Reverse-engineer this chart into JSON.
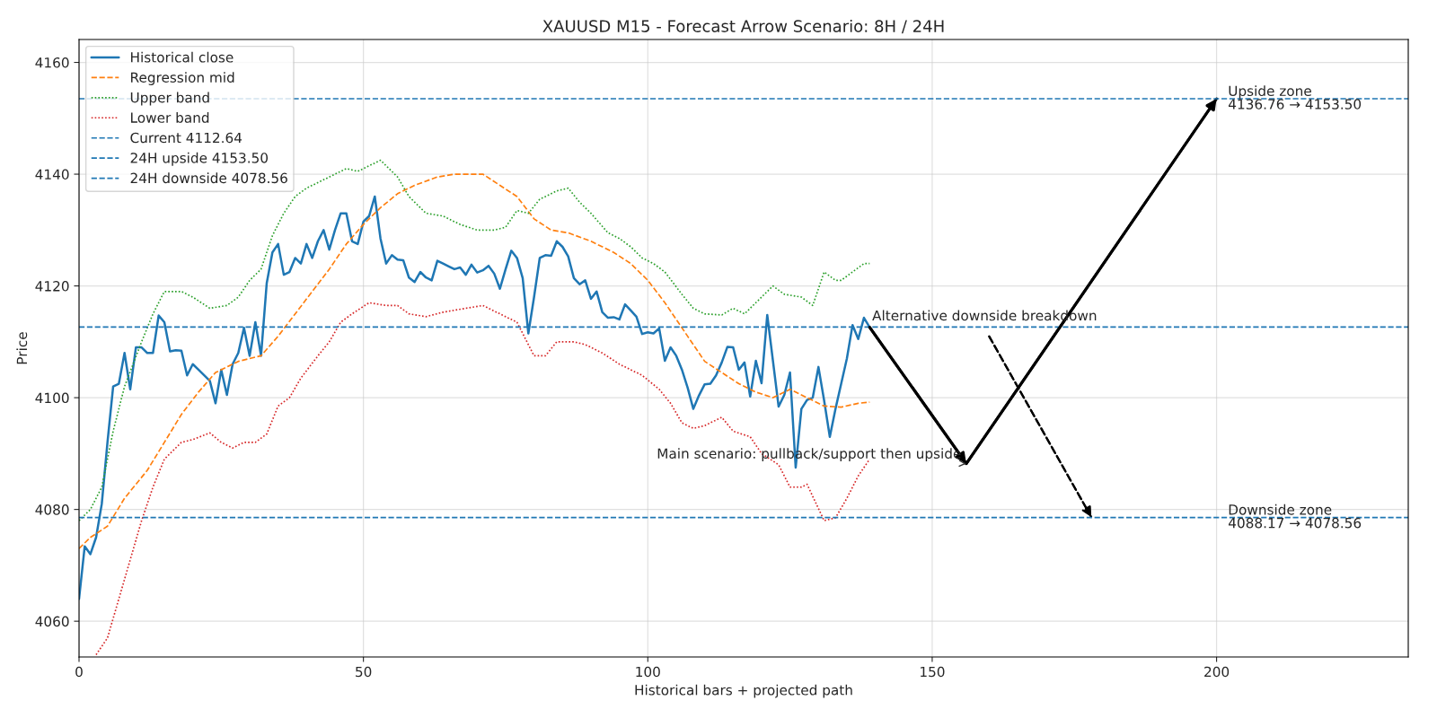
{
  "chart_data": {
    "type": "line",
    "title": "XAUUSD M15 - Forecast Arrow Scenario: 8H / 24H",
    "xlabel": "Historical bars + projected path",
    "ylabel": "Price",
    "xlim": [
      0,
      233.7
    ],
    "ylim": [
      4053.6,
      4164.1
    ],
    "xticks": [
      0,
      50,
      100,
      150,
      200
    ],
    "yticks": [
      4060,
      4080,
      4100,
      4120,
      4140,
      4160
    ],
    "grid": true,
    "legend": "top left",
    "series": [
      {
        "name": "Historical close",
        "color": "#1f77b4",
        "line_style": "solid",
        "x": [
          0,
          1,
          2,
          3,
          4,
          5,
          6,
          7,
          8,
          9,
          10,
          11,
          12,
          13,
          14,
          15,
          16,
          17,
          18,
          19,
          20,
          21,
          22,
          23,
          24,
          25,
          26,
          27,
          28,
          29,
          30,
          31,
          32,
          33,
          34,
          35,
          36,
          37,
          38,
          39,
          40,
          41,
          42,
          43,
          44,
          45,
          46,
          47,
          48,
          49,
          50,
          51,
          52,
          53,
          54,
          55,
          56,
          57,
          58,
          59,
          60,
          61,
          62,
          63,
          64,
          65,
          66,
          67,
          68,
          69,
          70,
          71,
          72,
          73,
          74,
          75,
          76,
          77,
          78,
          79,
          80,
          81,
          82,
          83,
          84,
          85,
          86,
          87,
          88,
          89,
          90,
          91,
          92,
          93,
          94,
          95,
          96,
          97,
          98,
          99,
          100,
          101,
          102,
          103,
          104,
          105,
          106,
          107,
          108,
          109,
          110,
          111,
          112,
          113,
          114,
          115,
          116,
          117,
          118,
          119,
          120,
          121,
          122,
          123,
          124,
          125,
          126,
          127,
          128,
          129,
          130,
          131,
          132,
          133,
          134,
          135,
          136,
          137,
          138,
          139
        ],
        "values": [
          4064,
          4073.4,
          4072,
          4075,
          4081,
          4092,
          4102,
          4102.5,
          4108,
          4101.5,
          4109,
          4109,
          4108,
          4108,
          4114.7,
          4113.5,
          4108.3,
          4108.5,
          4108.4,
          4104,
          4106,
          4105,
          4104,
          4103,
          4099,
          4105,
          4100.5,
          4106,
          4108,
          4112.5,
          4107.5,
          4113.5,
          4107.5,
          4120.5,
          4126,
          4127.5,
          4122,
          4122.5,
          4125,
          4124,
          4127.5,
          4125,
          4128,
          4130,
          4126.5,
          4130,
          4133,
          4133,
          4128,
          4127.5,
          4131.5,
          4132.5,
          4136,
          4128.5,
          4124,
          4125.5,
          4124.7,
          4124.6,
          4121.5,
          4120.7,
          4122.5,
          4121.5,
          4121,
          4124.5,
          4124,
          4123.5,
          4123,
          4123.3,
          4122,
          4123.8,
          4122.4,
          4122.8,
          4123.6,
          4122.2,
          4119.5,
          4123,
          4126.3,
          4125,
          4121.4,
          4111.5,
          4118,
          4125,
          4125.5,
          4125.4,
          4128,
          4127,
          4125.3,
          4121.4,
          4120.3,
          4121,
          4117.7,
          4119,
          4115.3,
          4114.3,
          4114.4,
          4114,
          4116.7,
          4115.6,
          4114.5,
          4111.4,
          4111.7,
          4111.5,
          4112.4,
          4106.6,
          4109,
          4107.5,
          4105,
          4101.8,
          4098,
          4100.4,
          4102.4,
          4102.5,
          4104,
          4106.3,
          4109.1,
          4109,
          4105,
          4106.3,
          4100.2,
          4106.6,
          4102.6,
          4114.8,
          4106.6,
          4098.4,
          4100.5,
          4104.5,
          4087.5,
          4098,
          4099.6,
          4100,
          4105.5,
          4099.5,
          4093,
          4098,
          4102.5,
          4107,
          4113,
          4110.5,
          4114.3,
          4112.6
        ]
      },
      {
        "name": "Regression mid",
        "color": "#ff7f0e",
        "line_style": "dashed",
        "x": [
          0,
          2,
          5,
          8,
          12,
          15,
          18,
          21,
          24,
          28,
          32,
          35,
          38,
          41,
          44,
          47,
          50,
          53,
          56,
          59,
          63,
          66,
          71,
          74,
          77,
          80,
          83,
          86,
          90,
          94,
          97,
          100,
          103,
          107,
          110,
          113,
          116,
          119,
          122,
          125,
          128,
          131,
          134,
          137,
          139
        ],
        "values": [
          4073,
          4075,
          4077,
          4082,
          4087,
          4092,
          4097,
          4101,
          4104.5,
          4106.5,
          4107.5,
          4111,
          4115,
          4119,
          4123,
          4127.5,
          4131,
          4134,
          4136.5,
          4138,
          4139.5,
          4140,
          4140,
          4138,
          4136,
          4132,
          4130,
          4129.5,
          4128,
          4126,
          4124,
          4121,
          4117,
          4111,
          4106.5,
          4104.5,
          4102.5,
          4101,
          4100,
          4101.5,
          4100,
          4098.5,
          4098.3,
          4099,
          4099.2
        ]
      },
      {
        "name": "Upper band",
        "color": "#2ca02c",
        "line_style": "dotted",
        "x": [
          0,
          2,
          4,
          6,
          8,
          11,
          13,
          15,
          18,
          20,
          23,
          26,
          28,
          30,
          32,
          34,
          36,
          38,
          40,
          43,
          45,
          47,
          49,
          51,
          53,
          56,
          58,
          61,
          64,
          67,
          70,
          73,
          75,
          77,
          79,
          81,
          84,
          86,
          88,
          90,
          93,
          95,
          97,
          99,
          101,
          103,
          106,
          108,
          110,
          113,
          115,
          117,
          119,
          122,
          124,
          127,
          129,
          131,
          133,
          134,
          136,
          138,
          139
        ],
        "values": [
          4078,
          4080,
          4084,
          4094,
          4102,
          4110,
          4115,
          4119,
          4119,
          4118,
          4116,
          4116.5,
          4118,
          4121,
          4123,
          4129,
          4133,
          4136,
          4137.5,
          4139,
          4140,
          4141,
          4140.5,
          4141.5,
          4142.5,
          4139.5,
          4136,
          4133,
          4132.5,
          4131,
          4130,
          4130,
          4130.5,
          4133.5,
          4133,
          4135.5,
          4137,
          4137.5,
          4135,
          4133,
          4129.5,
          4128.5,
          4127,
          4125,
          4124,
          4122.5,
          4118.5,
          4116,
          4115,
          4114.8,
          4116,
          4115,
          4117,
          4120,
          4118.5,
          4118,
          4116.5,
          4122.5,
          4121,
          4121,
          4122.5,
          4124,
          4124
        ]
      },
      {
        "name": "Lower band",
        "color": "#d62728",
        "line_style": "dotted",
        "x": [
          3,
          5,
          7,
          9,
          11,
          13,
          15,
          18,
          20,
          23,
          25,
          27,
          29,
          31,
          33,
          35,
          37,
          39,
          42,
          44,
          46,
          48,
          51,
          54,
          56,
          58,
          61,
          64,
          68,
          71,
          74,
          77,
          80,
          82,
          84,
          87,
          89,
          92,
          95,
          97,
          99,
          102,
          104,
          106,
          108,
          110,
          112,
          113,
          115,
          118,
          120,
          123,
          125,
          127,
          128,
          131,
          133,
          135,
          137,
          139
        ],
        "values": [
          4054,
          4057,
          4064,
          4071,
          4078,
          4084,
          4089,
          4092,
          4092.5,
          4093.7,
          4092,
          4091,
          4092,
          4092,
          4093.5,
          4098.5,
          4100,
          4103.5,
          4107.5,
          4110,
          4113.5,
          4115,
          4117,
          4116.5,
          4116.5,
          4115,
          4114.5,
          4115.3,
          4116,
          4116.5,
          4115,
          4113.5,
          4107.5,
          4107.5,
          4110,
          4110,
          4109.5,
          4108,
          4106,
          4105,
          4104,
          4101.5,
          4099,
          4095.5,
          4094.5,
          4095,
          4096,
          4096.5,
          4094,
          4093,
          4090,
          4088,
          4084,
          4084,
          4084.5,
          4078,
          4078.5,
          4082,
          4086,
          4089
        ]
      },
      {
        "color": "#000000",
        "line_style": "solid",
        "x": [
          139,
          156,
          200
        ],
        "values": [
          4112.6,
          4088.2,
          4153.5
        ]
      },
      {
        "color": "#000000",
        "line_style": "dashed",
        "x": [
          160,
          178
        ],
        "values": [
          4111,
          4078.6
        ]
      }
    ],
    "ref_lines": [
      {
        "axis": "y",
        "value": 4112.64,
        "label": "Current 4112.64",
        "color": "#1f77b4",
        "line_style": "dashed"
      },
      {
        "axis": "y",
        "value": 4153.5,
        "label": "24H upside 4153.50",
        "color": "#1f77b4",
        "line_style": "dashed"
      },
      {
        "axis": "y",
        "value": 4078.56,
        "label": "24H downside 4078.56",
        "color": "#1f77b4",
        "line_style": "dashed"
      }
    ],
    "annotations": [
      {
        "text": "Main scenario: pullback/support then upside",
        "x": 156,
        "y": 4088.17
      },
      {
        "text": "Alternative downside breakdown",
        "x": 139,
        "y": 4112.64
      },
      {
        "text": "Upside zone\n4136.76 → 4153.50",
        "x": 202,
        "y": 4153.5
      },
      {
        "text": "Downside zone\n4088.17 → 4078.56",
        "x": 202,
        "y": 4078.56
      }
    ]
  }
}
